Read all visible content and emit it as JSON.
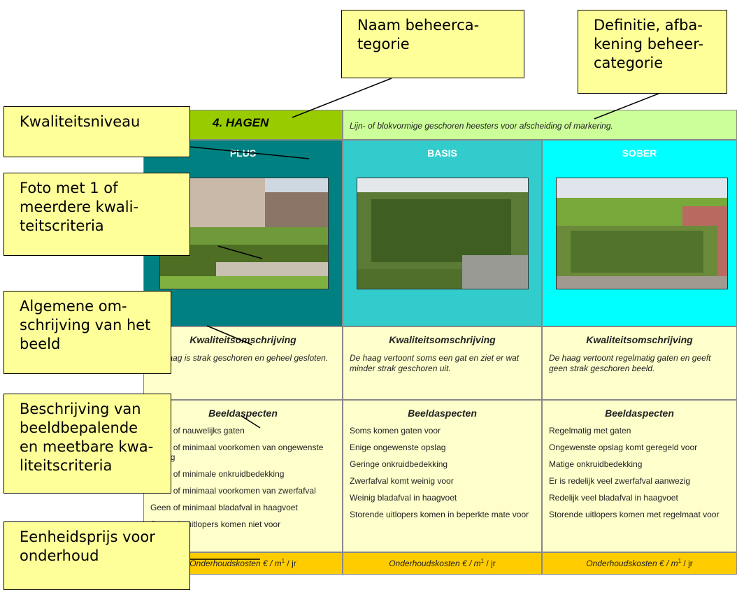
{
  "table": {
    "category": "4. HAGEN",
    "definition": "Lijn- of blokvormige geschoren heesters voor afscheiding of markering.",
    "columns": [
      {
        "level": "PLUS",
        "description_title": "Kwaliteitsomschrijving",
        "description": "De haag is strak geschoren en geheel gesloten.",
        "aspects_title": "Beeldaspecten",
        "aspects": [
          "Geen of nauwelijks gaten",
          "Geen of minimaal voorkomen van ongewenste opslag",
          "Geen of minimale onkruidbedekking",
          "Geen of minimaal voorkomen van zwerfafval",
          "Geen of minimaal bladafval in haagvoet",
          "Storende uitlopers komen niet voor"
        ],
        "cost": {
          "text": "Onderhoudskosten €  / m",
          "sup": "1",
          "unit": " / jr"
        }
      },
      {
        "level": "BASIS",
        "description_title": "Kwaliteitsomschrijving",
        "description": "De haag vertoont soms een gat en ziet er wat minder strak geschoren uit.",
        "aspects_title": "Beeldaspecten",
        "aspects": [
          "Soms komen gaten voor",
          "Enige ongewenste opslag",
          "Geringe onkruidbedekking",
          "Zwerfafval komt weinig voor",
          "Weinig bladafval in haagvoet",
          "Storende uitlopers komen in beperkte mate voor"
        ],
        "cost": {
          "text": "Onderhoudskosten €  / m",
          "sup": "1",
          "unit": " / jr"
        }
      },
      {
        "level": "SOBER",
        "description_title": "Kwaliteitsomschrijving",
        "description": "De haag vertoont regelmatig  gaten en geeft geen strak geschoren beeld.",
        "aspects_title": "Beeldaspecten",
        "aspects": [
          "Regelmatig met gaten",
          "Ongewenste opslag komt geregeld voor",
          "Matige onkruidbedekking",
          "Er is redelijk veel zwerfafval aanwezig",
          "Redelijk veel bladafval in haagvoet",
          "Storende uitlopers komen met regelmaat voor"
        ],
        "cost": {
          "text": "Onderhoudskosten €  / m",
          "sup": "1",
          "unit": " / jr"
        }
      }
    ]
  },
  "callouts": [
    {
      "lines": [
        "Naam beheerca-",
        "tegorie"
      ]
    },
    {
      "lines": [
        "Definitie, afba-",
        "kening beheer-",
        "categorie"
      ]
    },
    {
      "lines": [
        "Kwaliteitsniveau"
      ]
    },
    {
      "lines": [
        "Foto met 1 of",
        "meerdere kwali-",
        "teitscriteria"
      ]
    },
    {
      "lines": [
        "Algemene om-",
        "schrijving van het",
        "beeld"
      ]
    },
    {
      "lines": [
        "Beschrijving van",
        "beeldbepalende",
        "en meetbare kwa-",
        "liteitscriteria"
      ]
    },
    {
      "lines": [
        "Eenheidsprijs voor",
        "onderhoud"
      ]
    }
  ]
}
